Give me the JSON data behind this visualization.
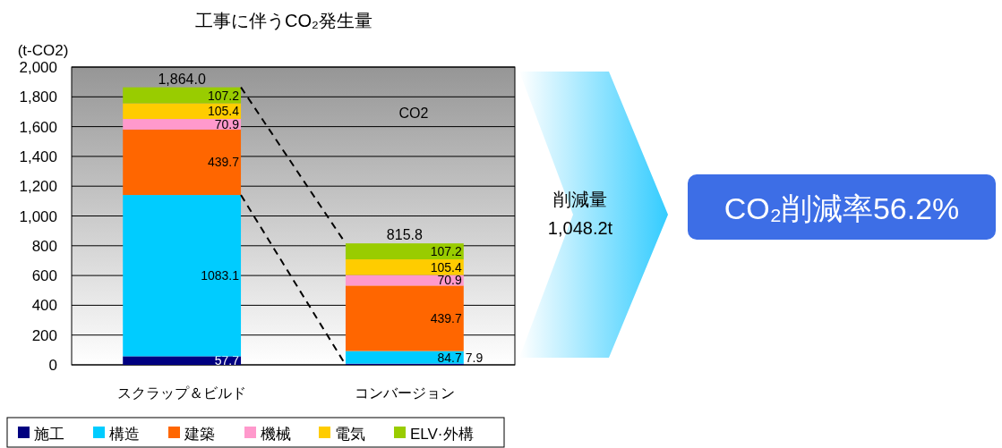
{
  "chart_data": {
    "type": "bar",
    "title": "工事に伴うCO₂発生量",
    "ylabel": "(t-CO2)",
    "categories": [
      "スクラップ＆ビルド",
      "コンバージョン"
    ],
    "stacked": true,
    "series": [
      {
        "name": "施工",
        "color": "#000080",
        "values": [
          57.7,
          7.9
        ]
      },
      {
        "name": "構造",
        "color": "#00ccff",
        "values": [
          1083.1,
          84.7
        ]
      },
      {
        "name": "建築",
        "color": "#ff6600",
        "values": [
          439.7,
          439.7
        ]
      },
      {
        "name": "機械",
        "color": "#ff99cc",
        "values": [
          70.9,
          70.9
        ]
      },
      {
        "name": "電気",
        "color": "#ffcc00",
        "values": [
          105.4,
          105.4
        ]
      },
      {
        "name": "ELV·外構",
        "color": "#99cc00",
        "values": [
          107.2,
          107.2
        ]
      }
    ],
    "totals": [
      "1,864.0",
      "815.8"
    ],
    "data_labels": true,
    "ylim": [
      0,
      2000
    ],
    "yticks": [
      {
        "value": 0,
        "label": "0"
      },
      {
        "value": 200,
        "label": "200"
      },
      {
        "value": 400,
        "label": "400"
      },
      {
        "value": 600,
        "label": "600"
      },
      {
        "value": 800,
        "label": "800"
      },
      {
        "value": 1000,
        "label": "1,000"
      },
      {
        "value": 1200,
        "label": "1,200"
      },
      {
        "value": 1400,
        "label": "1,400"
      },
      {
        "value": 1600,
        "label": "1,600"
      },
      {
        "value": 1800,
        "label": "1,800"
      },
      {
        "value": 2000,
        "label": "2,000"
      }
    ],
    "grid": "y",
    "legend": "bottom",
    "annotations": [
      "CO2",
      "削減量",
      "1,048.2t",
      "CO₂削減率56.2%"
    ]
  }
}
